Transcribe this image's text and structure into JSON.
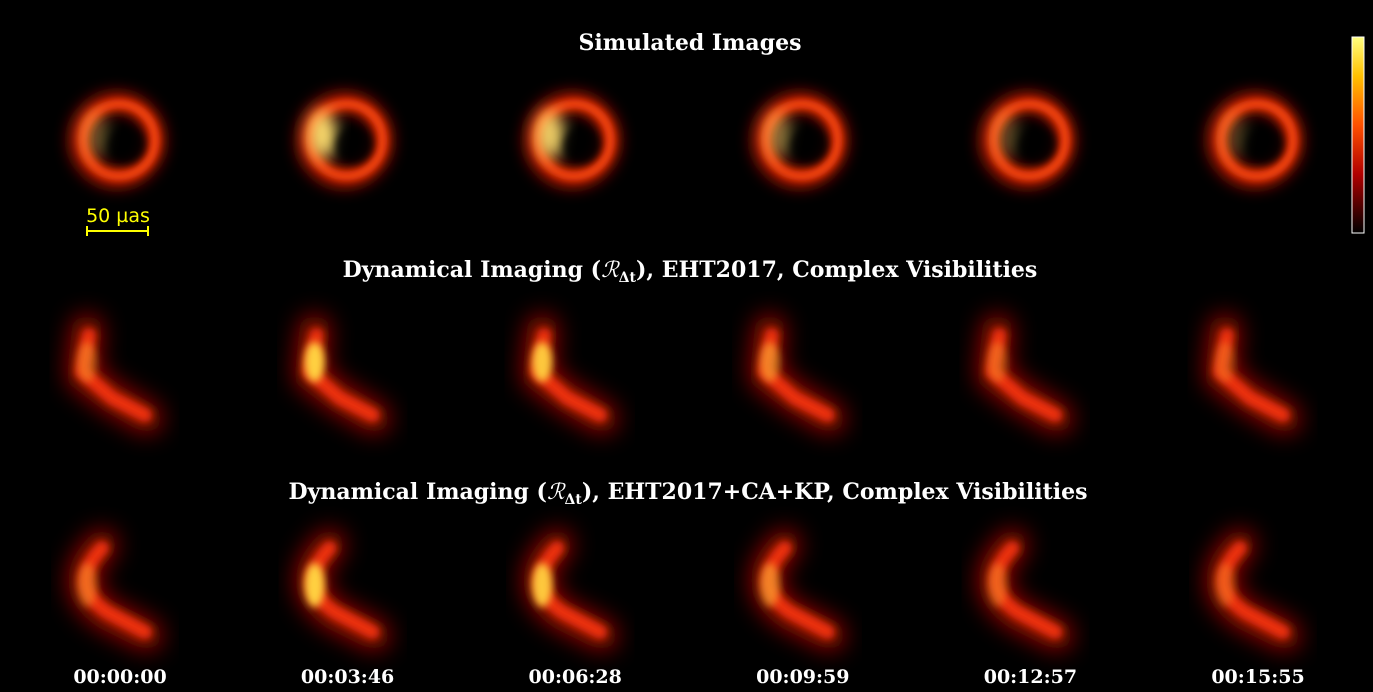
{
  "colorbar": {
    "present": true
  },
  "scale_bar": {
    "label": "50 µas"
  },
  "rows": [
    {
      "title": "Simulated Images"
    },
    {
      "title_before": "Dynamical Imaging (",
      "title_symbol": "ℛ",
      "title_subscript": "Δt",
      "title_after": "), EHT2017, Complex Visibilities"
    },
    {
      "title_before": "Dynamical Imaging (",
      "title_symbol": "ℛ",
      "title_subscript": "Δt",
      "title_after": "), EHT2017+CA+KP, Complex Visibilities"
    }
  ],
  "timestamps": [
    "00:00:00",
    "00:03:46",
    "00:06:28",
    "00:09:59",
    "00:12:57",
    "00:15:55"
  ]
}
